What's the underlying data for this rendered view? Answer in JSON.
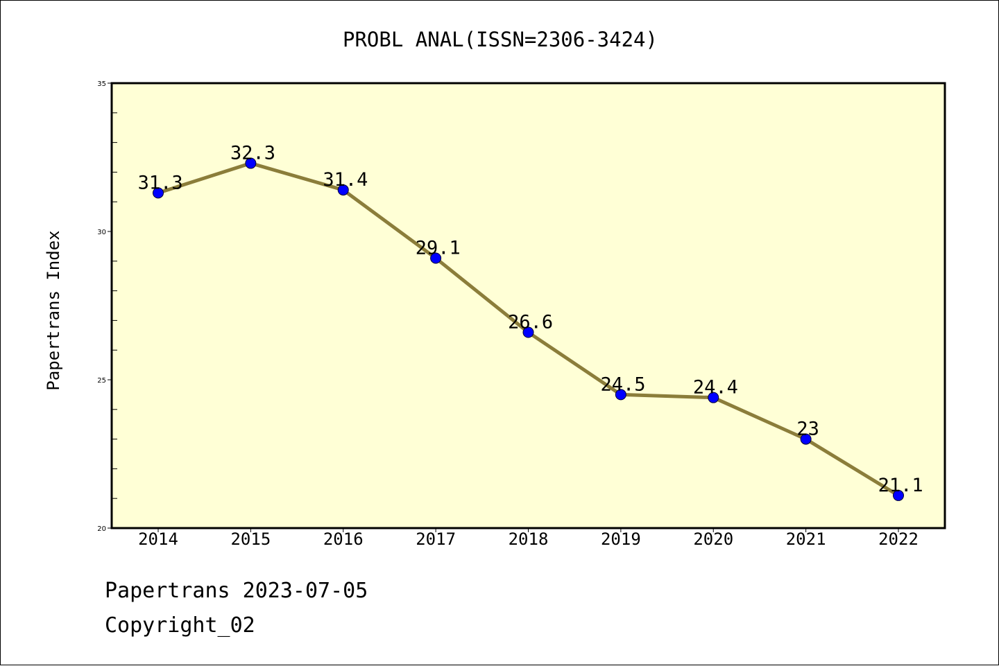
{
  "chart_data": {
    "type": "line",
    "title": "PROBL ANAL(ISSN=2306-3424)",
    "ylabel": "Papertrans Index",
    "xlabel": "",
    "categories": [
      "2014",
      "2015",
      "2016",
      "2017",
      "2018",
      "2019",
      "2020",
      "2021",
      "2022"
    ],
    "values": [
      31.3,
      32.3,
      31.4,
      29.1,
      26.6,
      24.5,
      24.4,
      23,
      21.1
    ],
    "data_labels": [
      "31.3",
      "32.3",
      "31.4",
      "29.1",
      "26.6",
      "24.5",
      "24.4",
      "23",
      "21.1"
    ],
    "ylim": [
      20,
      35
    ],
    "yticks": [
      20,
      25,
      30,
      35
    ],
    "grid": false,
    "legend": "none",
    "colors": {
      "plot_background": "#ffffd6",
      "line": "#8b7d3a",
      "marker": "#0000ff"
    }
  },
  "footer": {
    "line1": "Papertrans 2023-07-05",
    "line2": "Copyright_02"
  }
}
